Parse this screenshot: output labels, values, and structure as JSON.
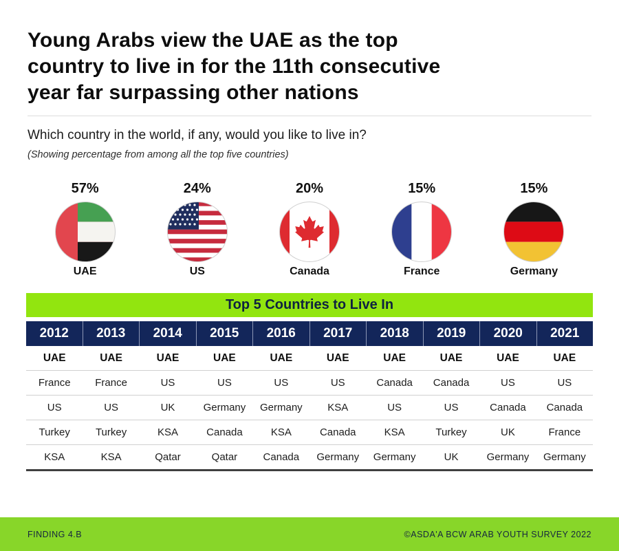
{
  "header": {
    "title_lines": [
      "Young Arabs view the UAE as the top",
      "country to live in for the 11th consecutive",
      "year far surpassing other nations"
    ],
    "question": "Which country in the world, if any, would you like to live in?",
    "subtitle": "(Showing percentage from among all the top five countries)"
  },
  "flags": [
    {
      "country": "UAE",
      "percent": "57%",
      "flag": "uae"
    },
    {
      "country": "US",
      "percent": "24%",
      "flag": "us"
    },
    {
      "country": "Canada",
      "percent": "20%",
      "flag": "canada"
    },
    {
      "country": "France",
      "percent": "15%",
      "flag": "france"
    },
    {
      "country": "Germany",
      "percent": "15%",
      "flag": "germany"
    }
  ],
  "table": {
    "banner": "Top 5 Countries to Live In",
    "years": [
      "2012",
      "2013",
      "2014",
      "2015",
      "2016",
      "2017",
      "2018",
      "2019",
      "2020",
      "2021"
    ],
    "rows": [
      [
        "UAE",
        "UAE",
        "UAE",
        "UAE",
        "UAE",
        "UAE",
        "UAE",
        "UAE",
        "UAE",
        "UAE"
      ],
      [
        "France",
        "France",
        "US",
        "US",
        "US",
        "US",
        "Canada",
        "Canada",
        "US",
        "US"
      ],
      [
        "US",
        "US",
        "UK",
        "Germany",
        "Germany",
        "KSA",
        "US",
        "US",
        "Canada",
        "Canada"
      ],
      [
        "Turkey",
        "Turkey",
        "KSA",
        "Canada",
        "KSA",
        "Canada",
        "KSA",
        "Turkey",
        "UK",
        "France"
      ],
      [
        "KSA",
        "KSA",
        "Qatar",
        "Qatar",
        "Canada",
        "Germany",
        "Germany",
        "UK",
        "Germany",
        "Germany"
      ]
    ]
  },
  "footer": {
    "left": "FINDING 4.B",
    "right": "©ASDA'A BCW ARAB YOUTH SURVEY 2022"
  },
  "colors": {
    "banner_green": "#92E50F",
    "footer_green": "#88D629",
    "navy": "#13265A",
    "flag_red": "#E2464E",
    "flag_green": "#46A052",
    "us_red": "#C62B3E",
    "us_navy": "#1F2E5E",
    "canada_red": "#DE2B30",
    "france_blue": "#2E3F8F",
    "france_red": "#EE3642",
    "germany_black": "#171717",
    "germany_red": "#DD0B15",
    "germany_gold": "#F2C233"
  },
  "chart_data": [
    {
      "type": "bar",
      "title": "Which country in the world, if any, would you like to live in?",
      "subtitle": "(Showing percentage from among all the top five countries)",
      "categories": [
        "UAE",
        "US",
        "Canada",
        "France",
        "Germany"
      ],
      "values": [
        57,
        24,
        20,
        15,
        15
      ],
      "value_unit": "%",
      "ylim": [
        0,
        100
      ],
      "legend_position": "none",
      "grid": false
    },
    {
      "type": "table",
      "title": "Top 5 Countries to Live In",
      "columns": [
        "2012",
        "2013",
        "2014",
        "2015",
        "2016",
        "2017",
        "2018",
        "2019",
        "2020",
        "2021"
      ],
      "rows": [
        [
          "UAE",
          "UAE",
          "UAE",
          "UAE",
          "UAE",
          "UAE",
          "UAE",
          "UAE",
          "UAE",
          "UAE"
        ],
        [
          "France",
          "France",
          "US",
          "US",
          "US",
          "US",
          "Canada",
          "Canada",
          "US",
          "US"
        ],
        [
          "US",
          "US",
          "UK",
          "Germany",
          "Germany",
          "KSA",
          "US",
          "US",
          "Canada",
          "Canada"
        ],
        [
          "Turkey",
          "Turkey",
          "KSA",
          "Canada",
          "KSA",
          "Canada",
          "KSA",
          "Turkey",
          "UK",
          "France"
        ],
        [
          "KSA",
          "KSA",
          "Qatar",
          "Qatar",
          "Canada",
          "Germany",
          "Germany",
          "UK",
          "Germany",
          "Germany"
        ]
      ]
    }
  ]
}
